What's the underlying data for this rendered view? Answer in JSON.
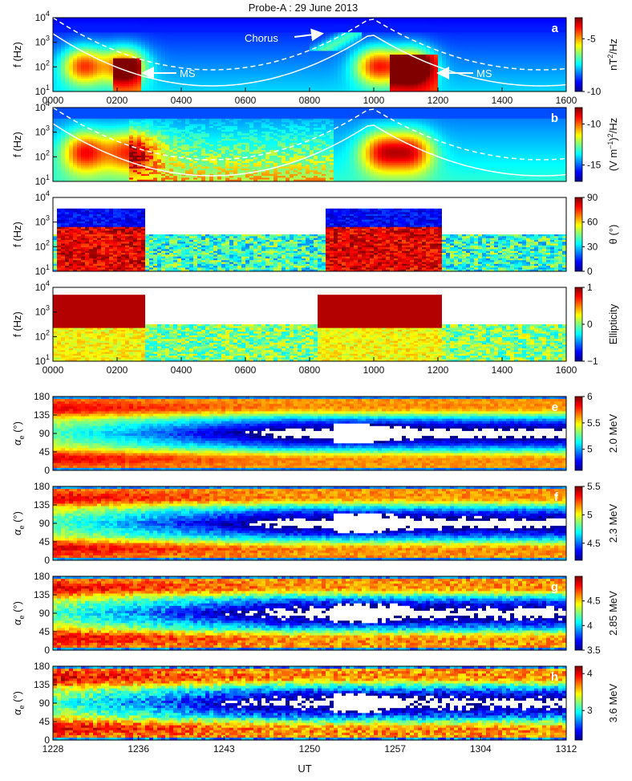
{
  "figure": {
    "title": "Probe-A : 29 June 2013",
    "xlabel": "UT"
  },
  "annotations": {
    "chorus": "Chorus",
    "ms_left": "MS",
    "ms_right": "MS"
  },
  "chart_data": [
    {
      "type": "heatmap",
      "panel": "a",
      "ylabel": "f (Hz)",
      "yscale": "log",
      "ylim": [
        10,
        10000
      ],
      "yticks": [
        "10",
        "10",
        "10",
        "10"
      ],
      "ytick_exp": [
        "1",
        "2",
        "3",
        "4"
      ],
      "colorbar": {
        "label": "nT²/Hz",
        "label_base": "nT",
        "label_sup": "2",
        "label_tail": "/Hz",
        "range": [
          -10,
          -3
        ],
        "ticks": [
          "-5",
          "-10"
        ]
      },
      "xticks": [
        "0000",
        "0200",
        "0400",
        "0600",
        "0800",
        "1000",
        "1200",
        "1400",
        "1600"
      ]
    },
    {
      "type": "heatmap",
      "panel": "b",
      "ylabel": "f (Hz)",
      "yscale": "log",
      "ylim": [
        10,
        10000
      ],
      "yticks": [
        "10",
        "10",
        "10",
        "10"
      ],
      "ytick_exp": [
        "1",
        "2",
        "3",
        "4"
      ],
      "colorbar": {
        "label": "(V m⁻¹)²/Hz",
        "label_base": "(V m",
        "label_sup1": "−1",
        "label_mid": ")",
        "label_sup2": "2",
        "label_tail": "/Hz",
        "range": [
          -17,
          -8
        ],
        "ticks": [
          "-10",
          "-15"
        ]
      }
    },
    {
      "type": "heatmap",
      "panel": "c",
      "ylabel": "f (Hz)",
      "yscale": "log",
      "ylim": [
        10,
        10000
      ],
      "yticks": [
        "10",
        "10",
        "10",
        "10"
      ],
      "ytick_exp": [
        "1",
        "2",
        "3",
        "4"
      ],
      "colorbar": {
        "label": "θ (°)",
        "range": [
          0,
          90
        ],
        "ticks": [
          "90",
          "60",
          "30",
          "0"
        ]
      }
    },
    {
      "type": "heatmap",
      "panel": "d",
      "ylabel": "f (Hz)",
      "yscale": "log",
      "ylim": [
        10,
        10000
      ],
      "yticks": [
        "10",
        "10",
        "10",
        "10"
      ],
      "ytick_exp": [
        "1",
        "2",
        "3",
        "4"
      ],
      "colorbar": {
        "label": "Ellipticity",
        "range": [
          -1,
          1
        ],
        "ticks": [
          "1",
          "0",
          "−1"
        ]
      },
      "xticks": [
        "0000",
        "0200",
        "0400",
        "0600",
        "0800",
        "1000",
        "1200",
        "1400",
        "1600"
      ]
    },
    {
      "type": "heatmap",
      "panel": "e",
      "ylabel": "αe (°)",
      "ylabel_main": "α",
      "ylabel_sub": "e",
      "ylabel_tail": " (°)",
      "ylim": [
        0,
        180
      ],
      "yticks": [
        "180",
        "135",
        "90",
        "45",
        "0"
      ],
      "colorbar": {
        "label": "2.0 MeV",
        "range": [
          4.6,
          6
        ],
        "ticks": [
          "6",
          "5.5",
          "5"
        ]
      }
    },
    {
      "type": "heatmap",
      "panel": "f",
      "ylabel": "αe (°)",
      "ylabel_main": "α",
      "ylabel_sub": "e",
      "ylabel_tail": " (°)",
      "ylim": [
        0,
        180
      ],
      "yticks": [
        "180",
        "135",
        "90",
        "45",
        "0"
      ],
      "colorbar": {
        "label": "2.3 MeV",
        "range": [
          4.2,
          5.5
        ],
        "ticks": [
          "5.5",
          "5",
          "4.5"
        ]
      }
    },
    {
      "type": "heatmap",
      "panel": "g",
      "ylabel": "αe (°)",
      "ylabel_main": "α",
      "ylabel_sub": "e",
      "ylabel_tail": " (°)",
      "ylim": [
        0,
        180
      ],
      "yticks": [
        "180",
        "135",
        "90",
        "45",
        "0"
      ],
      "colorbar": {
        "label": "2.85 MeV",
        "range": [
          3.5,
          5
        ],
        "ticks": [
          "4.5",
          "4",
          "3.5"
        ]
      }
    },
    {
      "type": "heatmap",
      "panel": "h",
      "ylabel": "αe (°)",
      "ylabel_main": "α",
      "ylabel_sub": "e",
      "ylabel_tail": " (°)",
      "ylim": [
        0,
        180
      ],
      "yticks": [
        "180",
        "135",
        "90",
        "45",
        "0"
      ],
      "colorbar": {
        "label": "3.6 MeV",
        "range": [
          2.2,
          4.2
        ],
        "ticks": [
          "4",
          "3"
        ]
      },
      "xticks": [
        "1228",
        "1236",
        "1243",
        "1250",
        "1257",
        "1304",
        "1312"
      ]
    }
  ]
}
